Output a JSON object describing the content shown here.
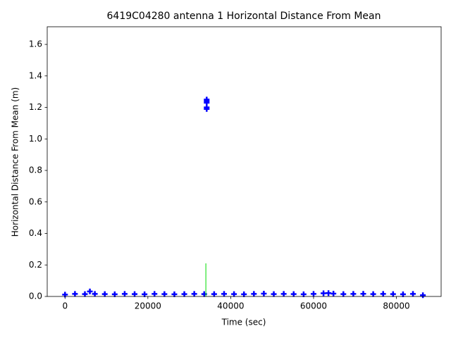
{
  "chart_data": {
    "type": "scatter",
    "title": "6419C04280 antenna 1 Horizontal Distance From Mean",
    "x_label": "Time (sec)",
    "y_label": "Horizontal Distance From Mean (m)",
    "xlim": [
      -4300,
      90800
    ],
    "ylim": [
      0,
      1.712
    ],
    "xticks": [
      0,
      20000,
      40000,
      60000,
      80000
    ],
    "yticks": [
      {
        "value": 0,
        "label": "0.0"
      },
      0.2,
      0.4,
      0.6,
      0.8,
      {
        "value": 1,
        "label": "1.0"
      },
      1.2,
      1.4,
      1.6
    ],
    "series": [
      {
        "type": "scatter",
        "color": "#0000ff",
        "x": [
          0,
          2400,
          4800,
          6000,
          7200,
          9600,
          12000,
          14400,
          16800,
          19200,
          21600,
          24000,
          26400,
          28800,
          31200,
          33600,
          34200,
          34200,
          34200,
          34200,
          34200,
          36000,
          38400,
          40800,
          43200,
          45600,
          48000,
          50400,
          52800,
          55200,
          57600,
          60000,
          62400,
          63600,
          64800,
          67200,
          69600,
          72000,
          74400,
          76800,
          79200,
          81600,
          84000,
          86400
        ],
        "values": [
          0.012,
          0.016,
          0.015,
          0.032,
          0.016,
          0.015,
          0.014,
          0.016,
          0.015,
          0.014,
          0.016,
          0.015,
          0.014,
          0.015,
          0.016,
          0.015,
          1.19,
          1.2,
          1.23,
          1.24,
          1.25,
          0.015,
          0.016,
          0.015,
          0.014,
          0.016,
          0.018,
          0.015,
          0.016,
          0.015,
          0.014,
          0.016,
          0.02,
          0.021,
          0.018,
          0.015,
          0.016,
          0.017,
          0.015,
          0.016,
          0.015,
          0.014,
          0.016,
          0.008
        ]
      },
      {
        "type": "line",
        "color": "#00dd00",
        "x": [
          34000,
          34000
        ],
        "values": [
          0,
          0.21
        ]
      }
    ]
  }
}
